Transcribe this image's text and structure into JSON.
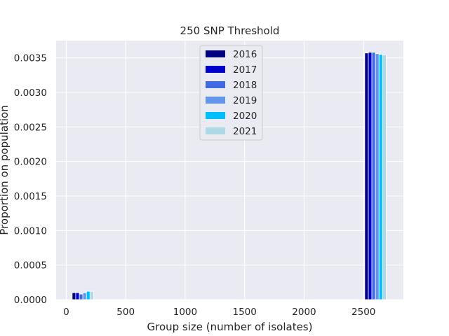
{
  "chart_data": {
    "type": "bar",
    "title": "250 SNP Threshold",
    "xlabel": "Group size (number of isolates)",
    "ylabel": "Proportion on population",
    "xlim": [
      -85,
      2835
    ],
    "ylim": [
      0,
      0.00375
    ],
    "xticks": [
      0,
      500,
      1000,
      1500,
      2000,
      2500
    ],
    "xtick_labels": [
      "0",
      "500",
      "1000",
      "1500",
      "2000",
      "2500"
    ],
    "yticks": [
      0,
      0.0005,
      0.001,
      0.0015,
      0.002,
      0.0025,
      0.003,
      0.0035
    ],
    "ytick_labels": [
      "0.0000",
      "0.0005",
      "0.0010",
      "0.0015",
      "0.0020",
      "0.0025",
      "0.0030",
      "0.0035"
    ],
    "grid": true,
    "legend_position": "top-center",
    "bar_width": 30,
    "groups": [
      {
        "x_center": 140,
        "values": [
          0.0001,
          0.0001,
          8e-05,
          0.0001,
          0.00012,
          0.00012
        ]
      },
      {
        "x_center": 2600,
        "values": [
          0.00357,
          0.00358,
          0.00358,
          0.00356,
          0.00355,
          0.00354
        ]
      }
    ],
    "series": [
      {
        "name": "2016",
        "color": "#000080"
      },
      {
        "name": "2017",
        "color": "#0000CD"
      },
      {
        "name": "2018",
        "color": "#4169E1"
      },
      {
        "name": "2019",
        "color": "#6495ED"
      },
      {
        "name": "2020",
        "color": "#00BFFF"
      },
      {
        "name": "2021",
        "color": "#ADD8E6"
      }
    ]
  },
  "colors": {
    "plot_background": "#EAEAF2",
    "grid": "#FFFFFF",
    "text": "#262626"
  }
}
